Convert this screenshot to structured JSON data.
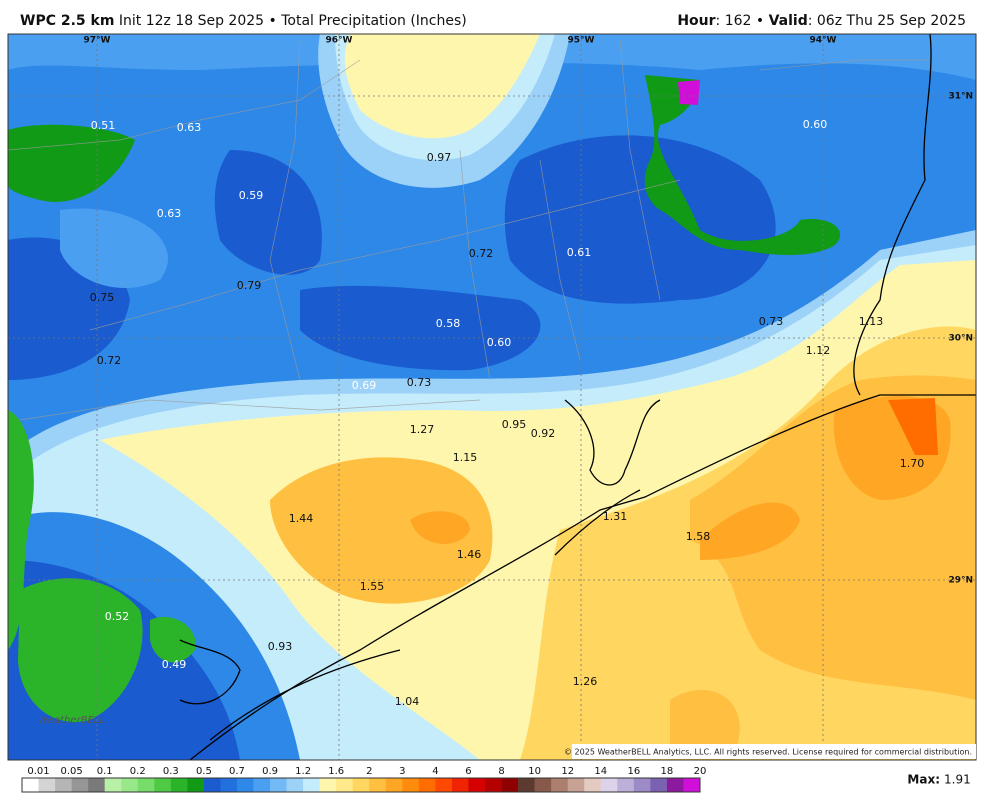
{
  "header": {
    "title_bold": "WPC 2.5 km",
    "title_rest": "Init 12z 18 Sep 2025 • Total Precipitation (Inches)",
    "hour_label": "Hour",
    "hour_text": ": 162 • ",
    "valid_label": "Valid",
    "valid_text": ": 06z Thu 25 Sep 2025"
  },
  "map": {
    "longitudes": [
      "97°W",
      "96°W",
      "95°W",
      "94°W"
    ],
    "latitudes": [
      "31°N",
      "30°N",
      "29°N"
    ],
    "labels": [
      "0.51",
      "0.63",
      "0.97",
      "0.60",
      "0.59",
      "0.63",
      "0.72",
      "0.61",
      "0.75",
      "0.79",
      "0.58",
      "0.60",
      "0.73",
      "1.13",
      "1.12",
      "0.72",
      "0.69",
      "0.73",
      "0.95",
      "0.92",
      "1.27",
      "1.15",
      "1.70",
      "1.44",
      "1.31",
      "1.46",
      "1.58",
      "1.55",
      "0.52",
      "0.93",
      "0.49",
      "1.26",
      "1.04"
    ],
    "copyright": "© 2025 WeatherBELL Analytics, LLC. All rights reserved. License required for commercial distribution.",
    "logo": "WeatherBELL"
  },
  "legend": {
    "labels": [
      "0.01",
      "0.05",
      "0.1",
      "0.2",
      "0.3",
      "0.5",
      "0.7",
      "0.9",
      "1.2",
      "1.6",
      "2",
      "3",
      "4",
      "6",
      "8",
      "10",
      "12",
      "14",
      "16",
      "18",
      "20"
    ],
    "colors": [
      "#ffffff",
      "#d4d4d4",
      "#b5b5b5",
      "#969696",
      "#7a7a7a",
      "#b8f0a8",
      "#98e88a",
      "#76dc6a",
      "#4fca45",
      "#2bb42a",
      "#109a16",
      "#1a5bd0",
      "#2170dd",
      "#2d88e8",
      "#4a9ff0",
      "#72b9f5",
      "#9dd2f8",
      "#c4ecfb",
      "#fff6ae",
      "#ffe98a",
      "#ffd660",
      "#ffbf40",
      "#ffa625",
      "#ff8c0d",
      "#ff6d00",
      "#ff4800",
      "#f02400",
      "#d60000",
      "#b50000",
      "#8f0000",
      "#5c3a2f",
      "#86594a",
      "#ab7e6e",
      "#c8a294",
      "#e4cbc2",
      "#dcd2ea",
      "#bcb0da",
      "#9c8bc6",
      "#7a62b0",
      "#8d1a9e",
      "#d010d8"
    ]
  },
  "footer": {
    "max_label": "Max:",
    "max_value": "1.91"
  }
}
